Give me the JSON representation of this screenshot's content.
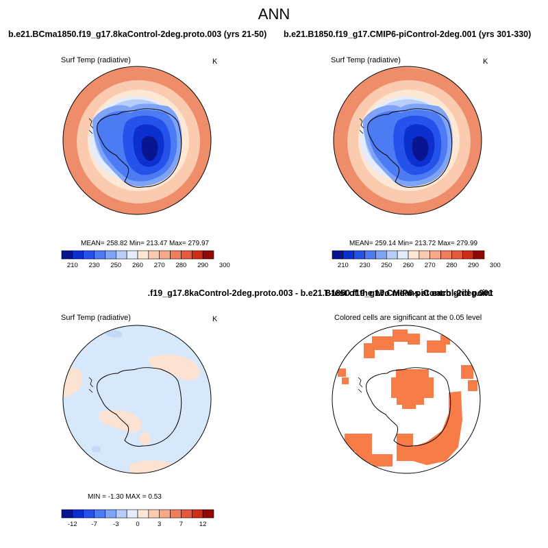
{
  "header": {
    "title": "ANN"
  },
  "panels": {
    "top_left": {
      "title": "b.e21.BCma1850.f19_g17.8kaControl-2deg.proto.003 (yrs 21-50)",
      "variable": "Surf Temp (radiative)",
      "unit": "K",
      "stats": "MEAN= 258.82  Min= 213.47  Max= 279.97"
    },
    "top_right": {
      "title": "b.e21.B1850.f19_g17.CMIP6-piControl-2deg.001 (yrs 301-330)",
      "variable": "Surf Temp (radiative)",
      "unit": "K",
      "stats": "MEAN= 259.14  Min= 213.72  Max= 279.99"
    },
    "bottom_left": {
      "title": ".f19_g17.8kaControl-2deg.proto.003 - b.e21.B1850.f19_g17.CMIP6-piControl-2deg.001",
      "variable": "Surf Temp (radiative)",
      "unit": "K",
      "stats": "MIN =  -1.30 MAX =   0.53"
    },
    "bottom_right": {
      "title": "T-test of the two means at each grid point",
      "subtitle": "Colored cells are significant at the 0.05 level"
    }
  },
  "colorbars": {
    "temperature": {
      "ticks": [
        "210",
        "230",
        "250",
        "260",
        "270",
        "280",
        "290",
        "300"
      ],
      "colors": [
        "#08158f",
        "#0c2fd0",
        "#2552eb",
        "#4c7bf3",
        "#7ea3f7",
        "#b7cdfa",
        "#e3edfd",
        "#fde7d5",
        "#fbcbb0",
        "#f6a889",
        "#ef7e5e",
        "#e55a3d",
        "#cc2e18",
        "#8f0a04"
      ]
    },
    "difference": {
      "ticks": [
        "-12",
        "-7",
        "-3",
        "0",
        "3",
        "7",
        "12"
      ],
      "colors": [
        "#08158f",
        "#0c2fd0",
        "#2552eb",
        "#4c7bf3",
        "#7ea3f7",
        "#b7cdfa",
        "#e3edfd",
        "#fde7d5",
        "#fbcbb0",
        "#f6a889",
        "#ef7e5e",
        "#e55a3d",
        "#cc2e18",
        "#8f0a04"
      ]
    }
  },
  "colors": {
    "significant": "#f77c48",
    "diff_background": "#d8e8fb",
    "diff_positive": "#fbe2d2"
  }
}
